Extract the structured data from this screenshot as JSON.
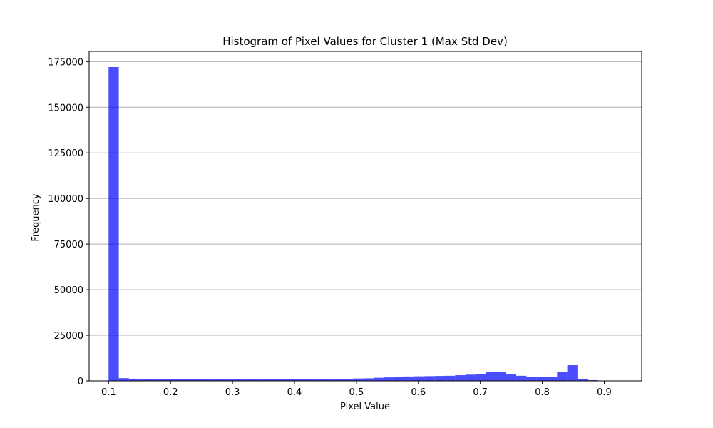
{
  "chart_data": {
    "type": "bar",
    "title": "Histogram of Pixel Values for Cluster 1 (Max Std Dev)",
    "xlabel": "Pixel Value",
    "ylabel": "Frequency",
    "xlim": [
      0.0686,
      0.9604
    ],
    "ylim": [
      0,
      180600
    ],
    "xticks": [
      0.1,
      0.2,
      0.3,
      0.4,
      0.5,
      0.6,
      0.7,
      0.8,
      0.9
    ],
    "xtick_labels": [
      "0.1",
      "0.2",
      "0.3",
      "0.4",
      "0.5",
      "0.6",
      "0.7",
      "0.8",
      "0.9"
    ],
    "yticks": [
      0,
      25000,
      50000,
      75000,
      100000,
      125000,
      150000,
      175000
    ],
    "ytick_labels": [
      "0",
      "25000",
      "50000",
      "75000",
      "100000",
      "125000",
      "150000",
      "175000"
    ],
    "grid": "y",
    "bar_color": "#0000ff",
    "bar_alpha": 0.7,
    "bin_start": 0.1,
    "bin_width": 0.01645,
    "values": [
      172000,
      1500,
      1200,
      900,
      1100,
      800,
      800,
      800,
      800,
      800,
      800,
      800,
      800,
      800,
      800,
      800,
      800,
      800,
      800,
      800,
      800,
      800,
      900,
      1000,
      1300,
      1400,
      1700,
      1900,
      2100,
      2400,
      2500,
      2600,
      2700,
      2800,
      3100,
      3400,
      3800,
      4700,
      4800,
      3500,
      2800,
      2300,
      2000,
      2100,
      5000,
      8600,
      1200,
      400
    ]
  }
}
